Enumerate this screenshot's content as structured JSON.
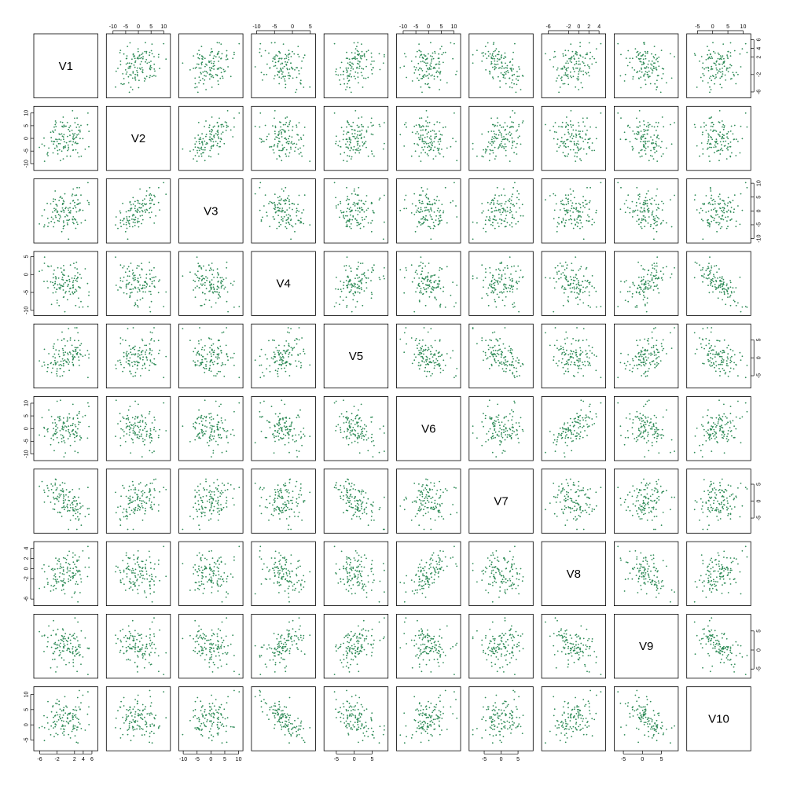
{
  "chart_data": {
    "type": "scatter",
    "kind": "scatterplot-matrix",
    "n_points_per_panel": 120,
    "point_color": "#2e8b57",
    "variables": [
      "V1",
      "V2",
      "V3",
      "V4",
      "V5",
      "V6",
      "V7",
      "V8",
      "V9",
      "V10"
    ],
    "ranges": {
      "V1": [
        -7,
        7
      ],
      "V2": [
        -12,
        12
      ],
      "V3": [
        -11,
        11
      ],
      "V4": [
        -11,
        6
      ],
      "V5": [
        -8,
        9
      ],
      "V6": [
        -12,
        12
      ],
      "V7": [
        -9,
        9
      ],
      "V8": [
        -7,
        5
      ],
      "V9": [
        -7,
        9
      ],
      "V10": [
        -8,
        12
      ]
    },
    "ticks": {
      "V1": [
        "-6",
        "-2",
        "2",
        "4",
        "6"
      ],
      "V2": [
        "-10",
        "-5",
        "0",
        "5",
        "10"
      ],
      "V3": [
        "-10",
        "-5",
        "0",
        "5",
        "10"
      ],
      "V4": [
        "-10",
        "-5",
        "0",
        "5"
      ],
      "V5": [
        "-5",
        "0",
        "5"
      ],
      "V6": [
        "-10",
        "-5",
        "0",
        "5",
        "10"
      ],
      "V7": [
        "-5",
        "0",
        "5"
      ],
      "V8": [
        "-6",
        "-2",
        "0",
        "2",
        "4"
      ],
      "V9": [
        "-5",
        "0",
        "5"
      ],
      "V10": [
        "-5",
        "0",
        "5",
        "10"
      ]
    },
    "approx_correlations": [
      {
        "pair": [
          "V1",
          "V2"
        ],
        "r": 0.2
      },
      {
        "pair": [
          "V1",
          "V3"
        ],
        "r": 0.2
      },
      {
        "pair": [
          "V1",
          "V4"
        ],
        "r": -0.2
      },
      {
        "pair": [
          "V1",
          "V5"
        ],
        "r": 0.55
      },
      {
        "pair": [
          "V1",
          "V6"
        ],
        "r": 0.0
      },
      {
        "pair": [
          "V1",
          "V7"
        ],
        "r": -0.85
      },
      {
        "pair": [
          "V1",
          "V8"
        ],
        "r": 0.15
      },
      {
        "pair": [
          "V1",
          "V9"
        ],
        "r": -0.1
      },
      {
        "pair": [
          "V1",
          "V10"
        ],
        "r": 0.0
      },
      {
        "pair": [
          "V2",
          "V3"
        ],
        "r": 0.95
      },
      {
        "pair": [
          "V2",
          "V4"
        ],
        "r": -0.15
      },
      {
        "pair": [
          "V2",
          "V5"
        ],
        "r": 0.1
      },
      {
        "pair": [
          "V2",
          "V6"
        ],
        "r": -0.2
      },
      {
        "pair": [
          "V2",
          "V7"
        ],
        "r": 0.6
      },
      {
        "pair": [
          "V2",
          "V8"
        ],
        "r": -0.1
      },
      {
        "pair": [
          "V2",
          "V9"
        ],
        "r": -0.2
      },
      {
        "pair": [
          "V2",
          "V10"
        ],
        "r": -0.1
      },
      {
        "pair": [
          "V3",
          "V4"
        ],
        "r": -0.3
      },
      {
        "pair": [
          "V3",
          "V5"
        ],
        "r": -0.15
      },
      {
        "pair": [
          "V3",
          "V6"
        ],
        "r": 0.0
      },
      {
        "pair": [
          "V3",
          "V7"
        ],
        "r": 0.5
      },
      {
        "pair": [
          "V3",
          "V8"
        ],
        "r": -0.1
      },
      {
        "pair": [
          "V3",
          "V9"
        ],
        "r": -0.35
      },
      {
        "pair": [
          "V3",
          "V10"
        ],
        "r": 0.0
      },
      {
        "pair": [
          "V4",
          "V5"
        ],
        "r": 0.55
      },
      {
        "pair": [
          "V4",
          "V6"
        ],
        "r": -0.55
      },
      {
        "pair": [
          "V4",
          "V7"
        ],
        "r": -0.1
      },
      {
        "pair": [
          "V4",
          "V8"
        ],
        "r": -0.5
      },
      {
        "pair": [
          "V4",
          "V9"
        ],
        "r": 0.65
      },
      {
        "pair": [
          "V4",
          "V10"
        ],
        "r": -0.95
      },
      {
        "pair": [
          "V5",
          "V6"
        ],
        "r": -0.6
      },
      {
        "pair": [
          "V5",
          "V7"
        ],
        "r": -0.85
      },
      {
        "pair": [
          "V5",
          "V8"
        ],
        "r": -0.3
      },
      {
        "pair": [
          "V5",
          "V9"
        ],
        "r": 0.6
      },
      {
        "pair": [
          "V5",
          "V10"
        ],
        "r": -0.6
      },
      {
        "pair": [
          "V6",
          "V7"
        ],
        "r": 0.1
      },
      {
        "pair": [
          "V6",
          "V8"
        ],
        "r": 0.85
      },
      {
        "pair": [
          "V6",
          "V9"
        ],
        "r": -0.3
      },
      {
        "pair": [
          "V6",
          "V10"
        ],
        "r": 0.5
      },
      {
        "pair": [
          "V7",
          "V8"
        ],
        "r": 0.0
      },
      {
        "pair": [
          "V7",
          "V9"
        ],
        "r": 0.0
      },
      {
        "pair": [
          "V7",
          "V10"
        ],
        "r": 0.3
      },
      {
        "pair": [
          "V8",
          "V9"
        ],
        "r": -0.55
      },
      {
        "pair": [
          "V8",
          "V10"
        ],
        "r": 0.45
      },
      {
        "pair": [
          "V9",
          "V10"
        ],
        "r": -0.5
      }
    ]
  }
}
